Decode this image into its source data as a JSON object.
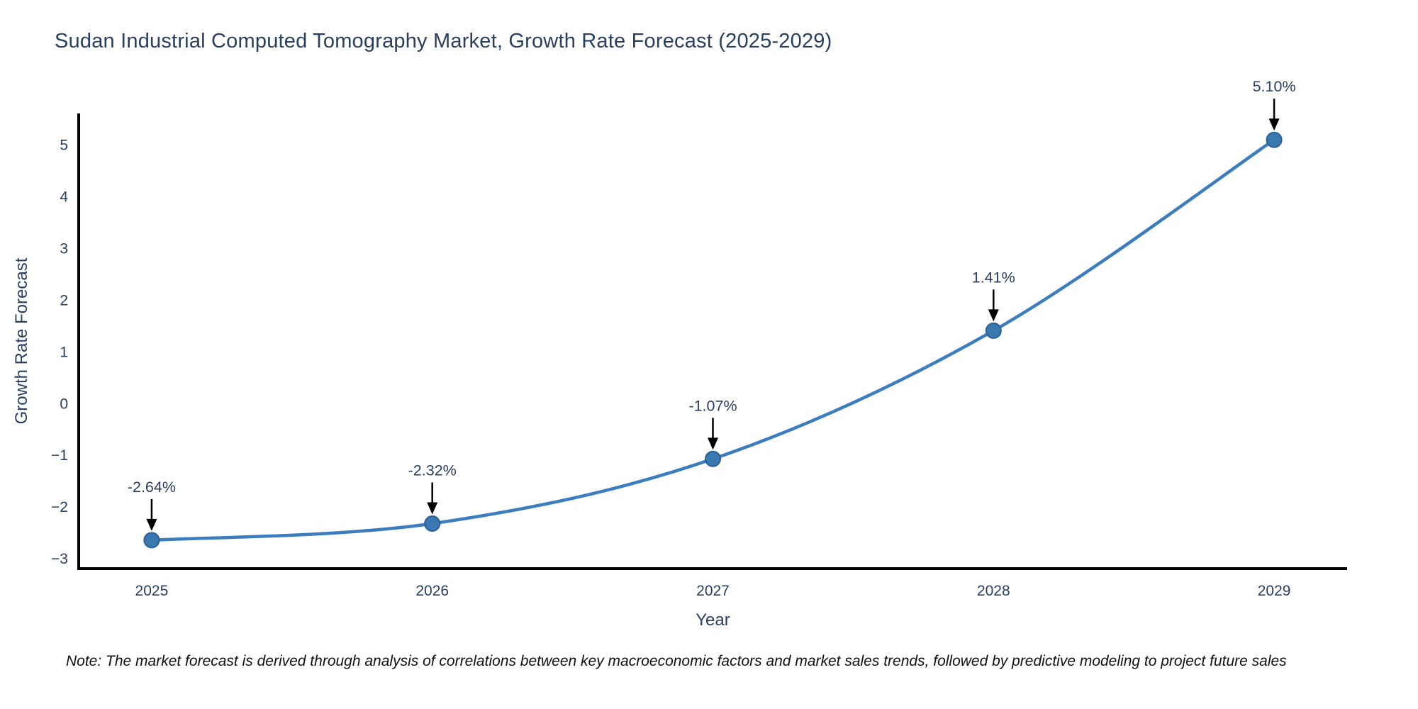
{
  "chart_data": {
    "type": "line",
    "title": "Sudan Industrial Computed Tomography Market, Growth Rate Forecast (2025-2029)",
    "xlabel": "Year",
    "ylabel": "Growth Rate Forecast",
    "x": [
      2025,
      2026,
      2027,
      2028,
      2029
    ],
    "y": [
      -2.64,
      -2.32,
      -1.07,
      1.41,
      5.1
    ],
    "point_labels": [
      "-2.64%",
      "-2.32%",
      "-1.07%",
      "1.41%",
      "5.10%"
    ],
    "line_shape": "spline",
    "xticks": {
      "values": [
        2025,
        2026,
        2027,
        2028,
        2029
      ],
      "labels": [
        "2025",
        "2026",
        "2027",
        "2028",
        "2029"
      ]
    },
    "yticks": {
      "values": [
        -3,
        -2,
        -1,
        0,
        1,
        2,
        3,
        4,
        5
      ],
      "labels": [
        "−3",
        "−2",
        "−1",
        "0",
        "1",
        "2",
        "3",
        "4",
        "5"
      ]
    },
    "xlim": [
      2024.74,
      2029.26
    ],
    "ylim": [
      -3.19,
      5.61
    ],
    "grid": false,
    "legend": "none",
    "colors": {
      "line": "#3c7dbf",
      "marker": "#3a78b2",
      "marker_edge": "#2c5f94",
      "axis": "#000000",
      "text": "#2a3f5f",
      "arrow": "#000000",
      "background": "#ffffff"
    }
  },
  "note": {
    "text": "Note: The market forecast is derived through analysis of correlations between key macroeconomic factors and market sales trends, followed by predictive modeling to project future sales"
  }
}
